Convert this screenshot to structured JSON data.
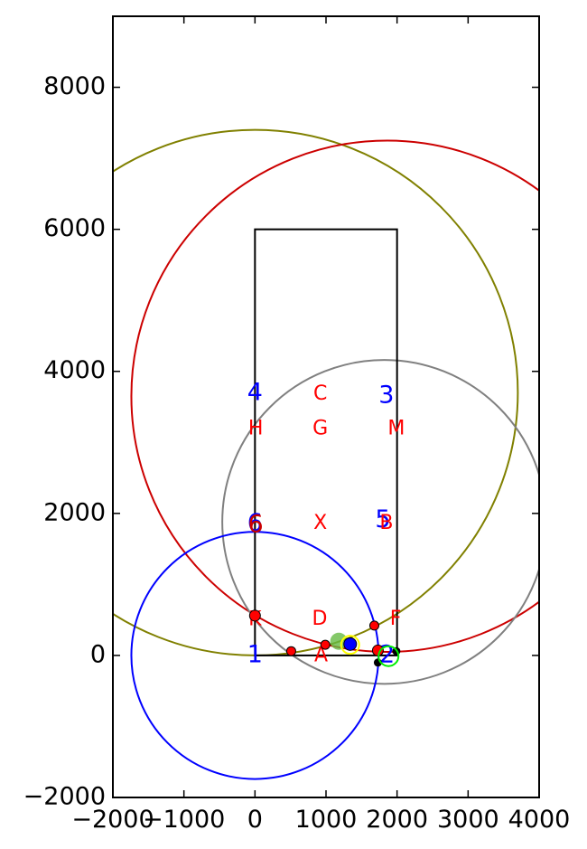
{
  "chart_data": {
    "type": "scatter",
    "title": "",
    "xlabel": "",
    "ylabel": "",
    "xlim": [
      -2000,
      4000
    ],
    "ylim": [
      -2000,
      9000
    ],
    "grid": false,
    "xticks": [
      {
        "value": -2000,
        "label": "−2000"
      },
      {
        "value": -1000,
        "label": "−1000"
      },
      {
        "value": 0,
        "label": "0"
      },
      {
        "value": 1000,
        "label": "1000"
      },
      {
        "value": 2000,
        "label": "2000"
      },
      {
        "value": 3000,
        "label": "3000"
      },
      {
        "value": 4000,
        "label": "4000"
      }
    ],
    "yticks": [
      {
        "value": -2000,
        "label": "−2000"
      },
      {
        "value": 0,
        "label": "0"
      },
      {
        "value": 2000,
        "label": "2000"
      },
      {
        "value": 4000,
        "label": "4000"
      },
      {
        "value": 6000,
        "label": "6000"
      },
      {
        "value": 8000,
        "label": "8000"
      }
    ],
    "rectangle": {
      "x0": 0,
      "y0": 0,
      "x1": 2000,
      "y1": 6000,
      "color": "#000000"
    },
    "circles": [
      {
        "id": "olive",
        "cx": 0,
        "cy": 3700,
        "r": 3700,
        "color": "#808000"
      },
      {
        "id": "red",
        "cx": 1860,
        "cy": 3650,
        "r": 3600,
        "color": "#cc0000"
      },
      {
        "id": "gray",
        "cx": 1820,
        "cy": 1880,
        "r": 2280,
        "color": "#808080"
      },
      {
        "id": "blue",
        "cx": 0,
        "cy": 0,
        "r": 1740,
        "color": "#0000ff"
      }
    ],
    "points": [
      {
        "id": "red-1",
        "x": 0,
        "y": 560,
        "r": 6,
        "fill": "#ff0000",
        "stroke": "#000000"
      },
      {
        "id": "red-2",
        "x": 510,
        "y": 60,
        "r": 5,
        "fill": "#ff0000",
        "stroke": "#000000"
      },
      {
        "id": "red-3",
        "x": 990,
        "y": 150,
        "r": 5,
        "fill": "#ff0000",
        "stroke": "#000000"
      },
      {
        "id": "red-4",
        "x": 1680,
        "y": 420,
        "r": 5,
        "fill": "#ff0000",
        "stroke": "#000000"
      },
      {
        "id": "red-5",
        "x": 1730,
        "y": 70,
        "r": 6,
        "fill": "#ff0000",
        "stroke": "#000000"
      },
      {
        "id": "black-1",
        "x": 1990,
        "y": 60,
        "r": 4,
        "fill": "#000000",
        "stroke": "#000000"
      },
      {
        "id": "black-2",
        "x": 1730,
        "y": -100,
        "r": 4,
        "fill": "#000000",
        "stroke": "#000000"
      },
      {
        "id": "green-ring",
        "x": 1880,
        "y": -10,
        "r": 11,
        "fill": "none",
        "stroke": "#00ee00"
      },
      {
        "id": "green-blob",
        "x": 1180,
        "y": 200,
        "r": 9,
        "fill": "#66bb44",
        "stroke": "#66bb44",
        "opacity": 0.8
      },
      {
        "id": "yellow-ring",
        "x": 1340,
        "y": 150,
        "r": 10,
        "fill": "none",
        "stroke": "#ffff00"
      },
      {
        "id": "blue-dot",
        "x": 1340,
        "y": 160,
        "r": 7,
        "fill": "#0000ff",
        "stroke": "#000000"
      }
    ],
    "annotations": [
      {
        "text": "1",
        "x": 0,
        "y": 0,
        "color": "#0000ff",
        "size": "big"
      },
      {
        "text": "2",
        "x": 1860,
        "y": 0,
        "color": "#0000ff",
        "size": "big"
      },
      {
        "text": "3",
        "x": 1850,
        "y": 3650,
        "color": "#0000ff",
        "size": "big"
      },
      {
        "text": "4",
        "x": 0,
        "y": 3690,
        "color": "#0000ff",
        "size": "big"
      },
      {
        "text": "5",
        "x": 1800,
        "y": 1900,
        "color": "#0000ff",
        "size": "big"
      },
      {
        "text": "6",
        "x": 0,
        "y": 1850,
        "color": "#0000ff",
        "size": "big"
      },
      {
        "text": "6",
        "x": 10,
        "y": 1830,
        "color": "#cc0000",
        "size": "big"
      },
      {
        "text": "C",
        "x": 920,
        "y": 3680,
        "color": "#ff0000",
        "size": "small"
      },
      {
        "text": "H",
        "x": 10,
        "y": 3190,
        "color": "#ff0000",
        "size": "small"
      },
      {
        "text": "G",
        "x": 920,
        "y": 3190,
        "color": "#ff0000",
        "size": "small"
      },
      {
        "text": "M",
        "x": 1990,
        "y": 3190,
        "color": "#ff0000",
        "size": "small"
      },
      {
        "text": "X",
        "x": 920,
        "y": 1860,
        "color": "#ff0000",
        "size": "small"
      },
      {
        "text": "B",
        "x": 1850,
        "y": 1860,
        "color": "#ff0000",
        "size": "small"
      },
      {
        "text": "K",
        "x": 0,
        "y": 500,
        "color": "#ff0000",
        "size": "small"
      },
      {
        "text": "D",
        "x": 910,
        "y": 510,
        "color": "#ff0000",
        "size": "small"
      },
      {
        "text": "F",
        "x": 1980,
        "y": 510,
        "color": "#ff0000",
        "size": "small"
      },
      {
        "text": "A",
        "x": 930,
        "y": -10,
        "color": "#ff0000",
        "size": "small"
      }
    ]
  }
}
